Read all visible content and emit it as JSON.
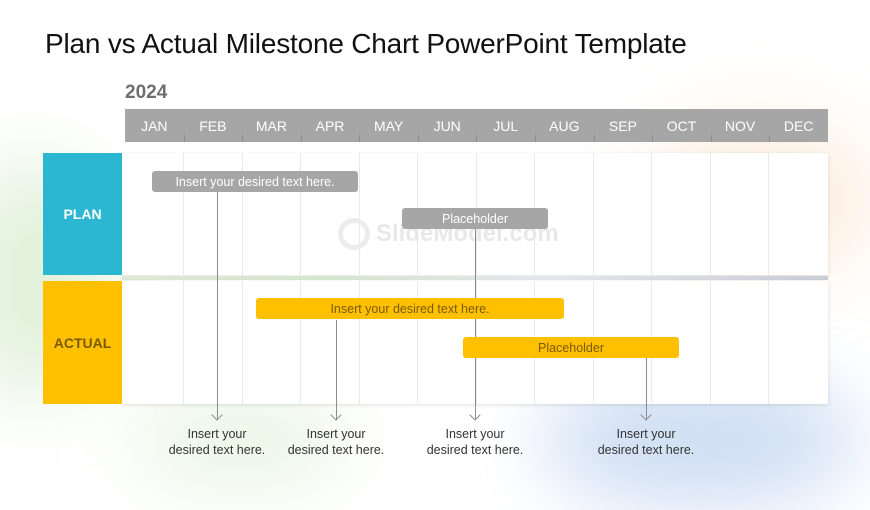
{
  "title": "Plan vs Actual Milestone Chart PowerPoint Template",
  "year": "2024",
  "months": [
    "JAN",
    "FEB",
    "MAR",
    "APR",
    "MAY",
    "JUN",
    "JUL",
    "AUG",
    "SEP",
    "OCT",
    "NOV",
    "DEC"
  ],
  "rows": {
    "plan": {
      "label": "PLAN",
      "color": "#2bb6d2"
    },
    "actual": {
      "label": "ACTUAL",
      "color": "#ffc000"
    }
  },
  "bars": {
    "plan_1": "Insert your desired text here.",
    "plan_2": "Placeholder",
    "actual_1": "Insert your desired text here.",
    "actual_2": "Placeholder"
  },
  "notes": [
    {
      "line1": "Insert your",
      "line2": "desired text here."
    },
    {
      "line1": "Insert your",
      "line2": "desired text here."
    },
    {
      "line1": "Insert your",
      "line2": "desired text here."
    },
    {
      "line1": "Insert your",
      "line2": "desired text here."
    }
  ],
  "watermark": "SlideModel.com",
  "colors": {
    "bar_gray": "#a6a6a6",
    "bar_yellow": "#ffc000",
    "plan": "#2bb6d2",
    "actual": "#ffc000"
  }
}
